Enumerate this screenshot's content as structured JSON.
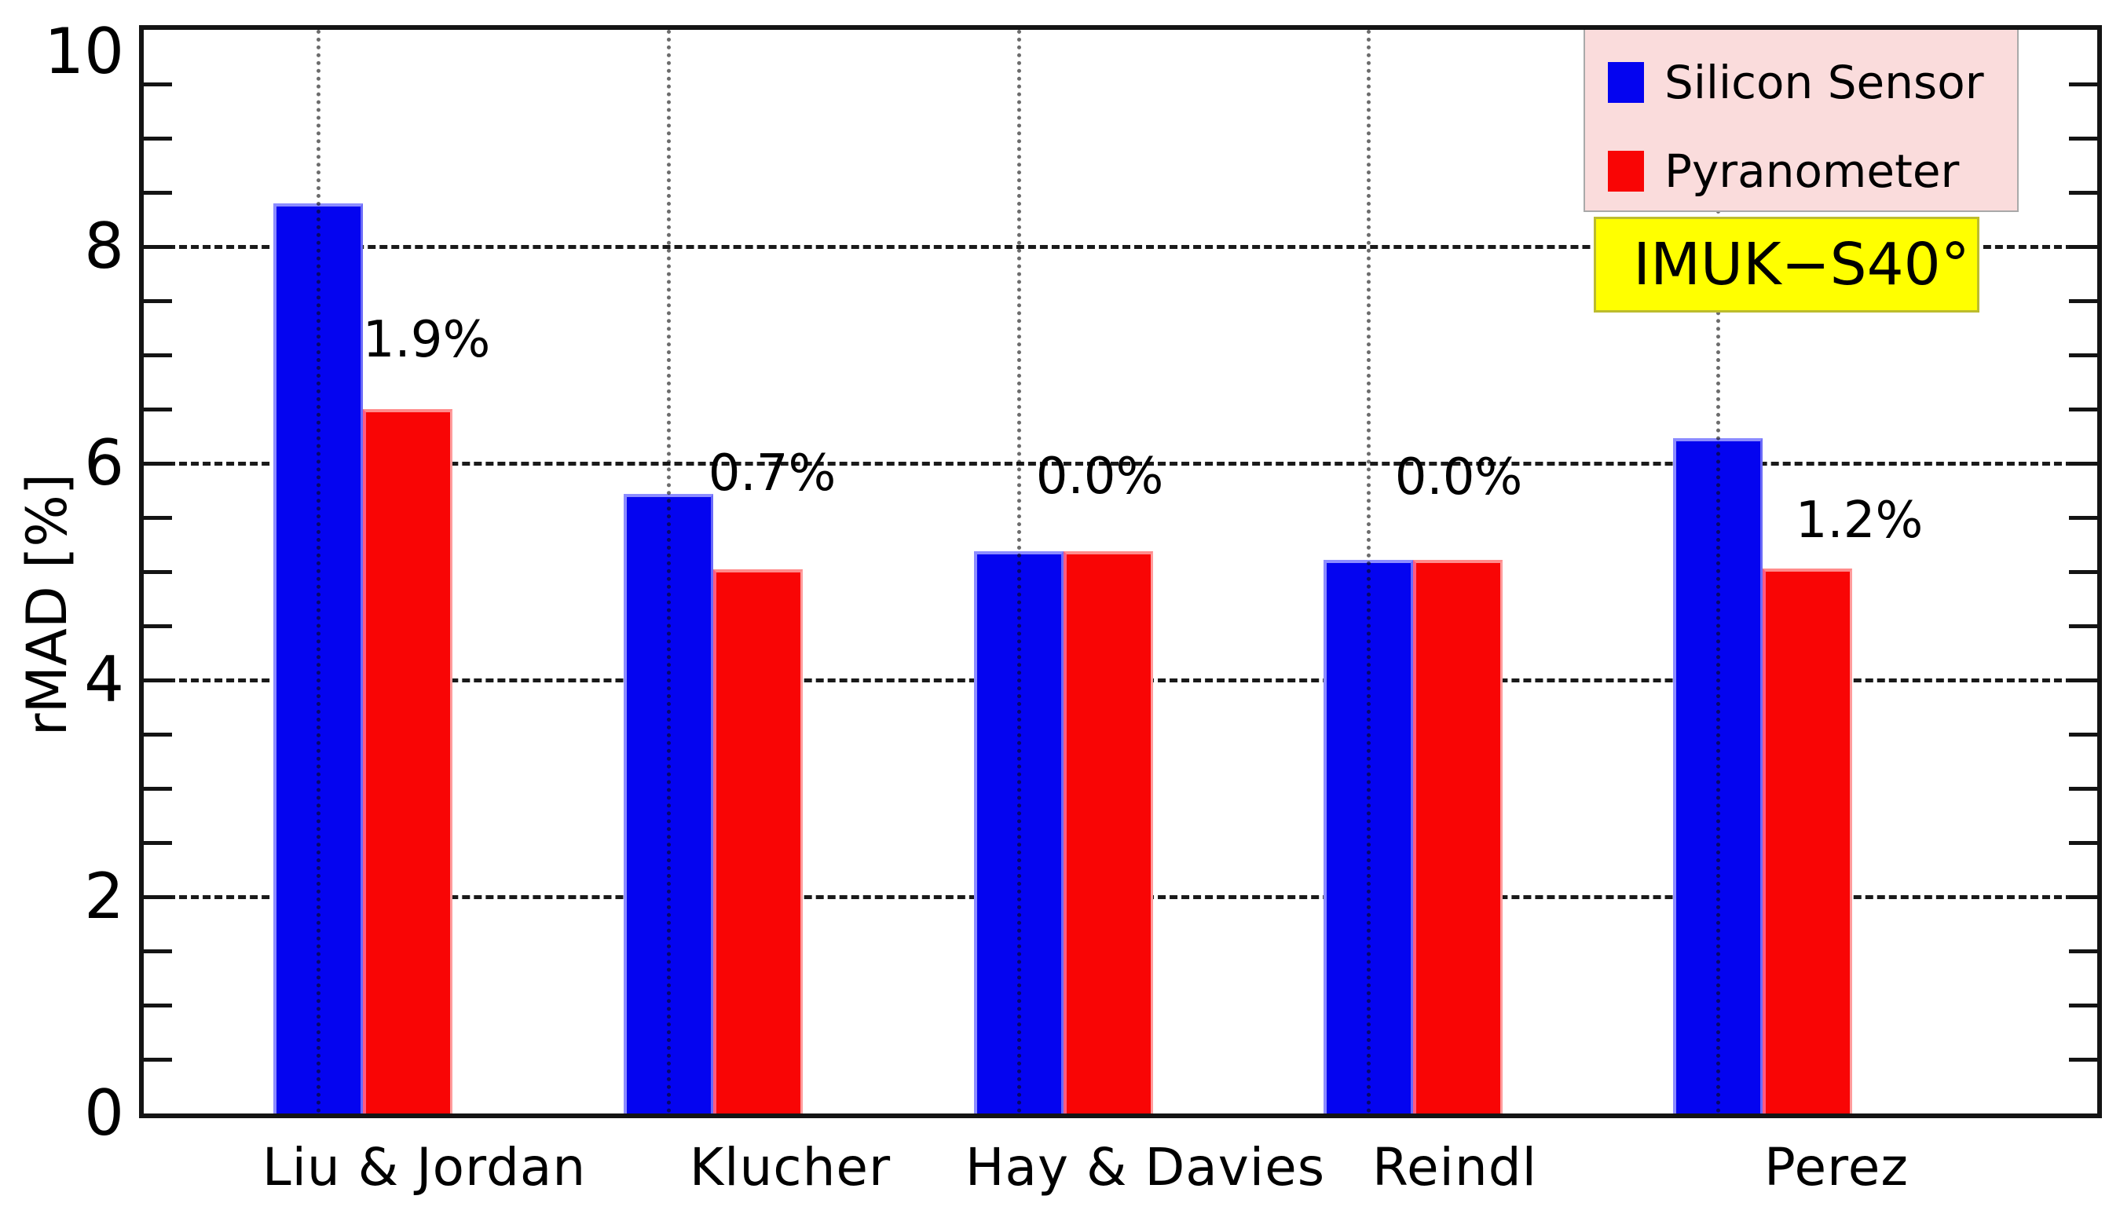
{
  "chart_data": {
    "type": "bar",
    "title": "",
    "ylabel": "rMAD [%]",
    "xlabel": "",
    "ylim": [
      0,
      10
    ],
    "yticks": [
      {
        "value": 0,
        "label": "0"
      },
      {
        "value": 2,
        "label": "2"
      },
      {
        "value": 4,
        "label": "4"
      },
      {
        "value": 6,
        "label": "6"
      },
      {
        "value": 8,
        "label": "8"
      },
      {
        "value": 10,
        "label": "10"
      }
    ],
    "minor_tick_step": 0.5,
    "grid": {
      "horizontal": "dashed lines at major ticks 2,4,6,8",
      "vertical": "dotted lines at category centers"
    },
    "categories": [
      "Liu & Jordan",
      "Klucher",
      "Hay & Davies",
      "Reindl",
      "Perez"
    ],
    "series": [
      {
        "name": "Silicon Sensor",
        "color": "#0404f0",
        "values": [
          8.4,
          5.72,
          5.19,
          5.11,
          6.23
        ]
      },
      {
        "name": "Pyranometer",
        "color": "#f90505",
        "values": [
          6.5,
          5.02,
          5.19,
          5.11,
          5.03
        ]
      }
    ],
    "annotations": [
      {
        "label": "1.9%"
      },
      {
        "label": "0.7%"
      },
      {
        "label": "0.0%"
      },
      {
        "label": "0.0%"
      },
      {
        "label": "1.2%"
      }
    ],
    "legend_position": "top-right",
    "station_label": "IMUK−S40°"
  },
  "legend": {
    "items": [
      {
        "label": "Silicon Sensor",
        "color": "#0404f0"
      },
      {
        "label": "Pyranometer",
        "color": "#f90505"
      }
    ]
  },
  "colors": {
    "silicon_sensor": "#0404f0",
    "pyranometer": "#f90505",
    "legend_bg": "#fadcdc",
    "station_bg": "#ffff00",
    "grid": "#1a1a1a"
  }
}
